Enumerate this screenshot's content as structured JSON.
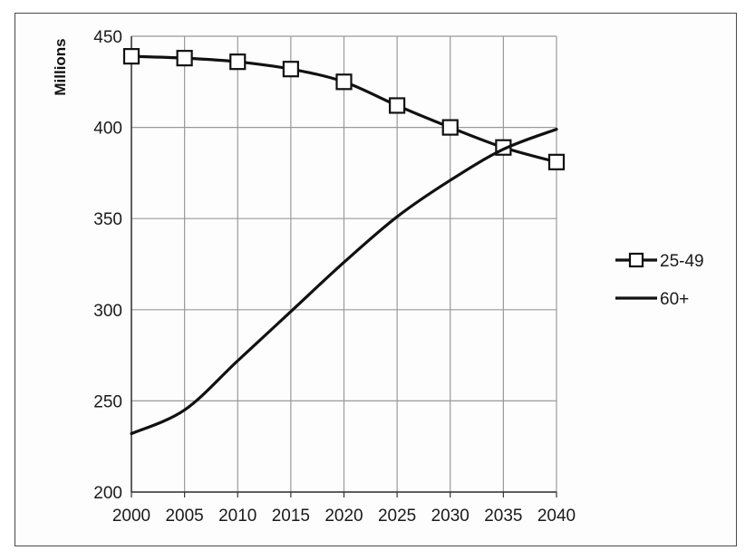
{
  "chart_data": {
    "type": "line",
    "title": "",
    "xlabel": "",
    "ylabel": "Millions",
    "x": [
      2000,
      2005,
      2010,
      2015,
      2020,
      2025,
      2030,
      2035,
      2040
    ],
    "xlim": [
      2000,
      2040
    ],
    "ylim": [
      200,
      450
    ],
    "yticks": [
      200,
      250,
      300,
      350,
      400,
      450
    ],
    "grid": true,
    "legend_position": "right",
    "series": [
      {
        "name": "25-49",
        "marker": "square",
        "values": [
          439,
          438,
          436,
          432,
          425,
          412,
          400,
          389,
          381
        ],
        "color": "#111111"
      },
      {
        "name": "60+",
        "marker": "none",
        "values": [
          232,
          245,
          272,
          299,
          326,
          351,
          371,
          388,
          399
        ],
        "color": "#111111"
      }
    ]
  }
}
